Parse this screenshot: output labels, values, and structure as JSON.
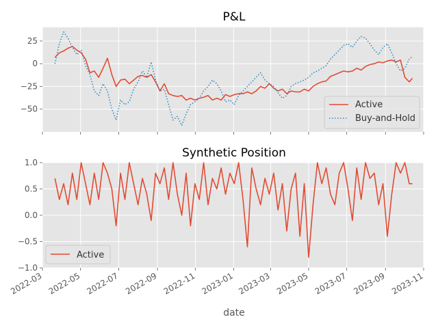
{
  "colors": {
    "active": "#e24a33",
    "buy_and_hold": "#348abd",
    "panel_background": "#e5e5e5",
    "grid": "#ffffff"
  },
  "chart_data": [
    {
      "type": "line",
      "title": "P&L",
      "xlabel": "",
      "ylabel": "",
      "x_range": [
        "2022-03-01",
        "2023-11-01"
      ],
      "ylim": [
        -75,
        40
      ],
      "yticks": [
        25,
        0,
        -25,
        -50
      ],
      "ytick_labels": [
        "25",
        "0",
        "−25",
        "−50"
      ],
      "grid": true,
      "legend_position": "lower-right",
      "series": [
        {
          "name": "Active",
          "style": "solid",
          "color": "#e24a33",
          "x": [
            "2022-03-21",
            "2022-03-28",
            "2022-04-04",
            "2022-04-11",
            "2022-04-18",
            "2022-04-25",
            "2022-05-02",
            "2022-05-09",
            "2022-05-16",
            "2022-05-23",
            "2022-05-30",
            "2022-06-06",
            "2022-06-13",
            "2022-06-20",
            "2022-06-27",
            "2022-07-04",
            "2022-07-11",
            "2022-07-18",
            "2022-07-25",
            "2022-08-01",
            "2022-08-08",
            "2022-08-15",
            "2022-08-22",
            "2022-08-29",
            "2022-09-05",
            "2022-09-12",
            "2022-09-19",
            "2022-09-26",
            "2022-10-03",
            "2022-10-10",
            "2022-10-17",
            "2022-10-24",
            "2022-10-31",
            "2022-11-07",
            "2022-11-14",
            "2022-11-21",
            "2022-11-28",
            "2022-12-05",
            "2022-12-12",
            "2022-12-19",
            "2022-12-26",
            "2023-01-02",
            "2023-01-09",
            "2023-01-16",
            "2023-01-23",
            "2023-01-30",
            "2023-02-06",
            "2023-02-13",
            "2023-02-20",
            "2023-02-27",
            "2023-03-06",
            "2023-03-13",
            "2023-03-20",
            "2023-03-27",
            "2023-04-03",
            "2023-04-10",
            "2023-04-17",
            "2023-04-24",
            "2023-05-01",
            "2023-05-08",
            "2023-05-15",
            "2023-05-22",
            "2023-05-29",
            "2023-06-05",
            "2023-06-12",
            "2023-06-19",
            "2023-06-26",
            "2023-07-03",
            "2023-07-10",
            "2023-07-17",
            "2023-07-24",
            "2023-07-31",
            "2023-08-07",
            "2023-08-14",
            "2023-08-21",
            "2023-08-28",
            "2023-09-04",
            "2023-09-11",
            "2023-09-18",
            "2023-09-25",
            "2023-10-02",
            "2023-10-09",
            "2023-10-14"
          ],
          "y": [
            7,
            12,
            14,
            17,
            19,
            15,
            12,
            5,
            -10,
            -8,
            -15,
            -5,
            6,
            -12,
            -25,
            -18,
            -17,
            -22,
            -18,
            -14,
            -13,
            -15,
            -12,
            -20,
            -30,
            -22,
            -33,
            -35,
            -36,
            -35,
            -40,
            -38,
            -40,
            -38,
            -37,
            -35,
            -40,
            -38,
            -40,
            -34,
            -36,
            -34,
            -33,
            -33,
            -31,
            -33,
            -30,
            -25,
            -27,
            -22,
            -27,
            -30,
            -28,
            -33,
            -30,
            -31,
            -31,
            -28,
            -30,
            -25,
            -22,
            -20,
            -19,
            -14,
            -12,
            -10,
            -8,
            -9,
            -8,
            -5,
            -7,
            -3,
            -1,
            0,
            2,
            1,
            3,
            4,
            2,
            4,
            -15,
            -20,
            -16
          ]
        },
        {
          "name": "Buy-and-Hold",
          "style": "dotted",
          "color": "#348abd",
          "x": [
            "2022-03-21",
            "2022-03-28",
            "2022-04-04",
            "2022-04-11",
            "2022-04-18",
            "2022-04-25",
            "2022-05-02",
            "2022-05-09",
            "2022-05-16",
            "2022-05-23",
            "2022-05-30",
            "2022-06-06",
            "2022-06-13",
            "2022-06-20",
            "2022-06-27",
            "2022-07-04",
            "2022-07-11",
            "2022-07-18",
            "2022-07-25",
            "2022-08-01",
            "2022-08-08",
            "2022-08-15",
            "2022-08-22",
            "2022-08-29",
            "2022-09-05",
            "2022-09-12",
            "2022-09-19",
            "2022-09-26",
            "2022-10-03",
            "2022-10-10",
            "2022-10-17",
            "2022-10-24",
            "2022-10-31",
            "2022-11-07",
            "2022-11-14",
            "2022-11-21",
            "2022-11-28",
            "2022-12-05",
            "2022-12-12",
            "2022-12-19",
            "2022-12-26",
            "2023-01-02",
            "2023-01-09",
            "2023-01-16",
            "2023-01-23",
            "2023-01-30",
            "2023-02-06",
            "2023-02-13",
            "2023-02-20",
            "2023-02-27",
            "2023-03-06",
            "2023-03-13",
            "2023-03-20",
            "2023-03-27",
            "2023-04-03",
            "2023-04-10",
            "2023-04-17",
            "2023-04-24",
            "2023-05-01",
            "2023-05-08",
            "2023-05-15",
            "2023-05-22",
            "2023-05-29",
            "2023-06-05",
            "2023-06-12",
            "2023-06-19",
            "2023-06-26",
            "2023-07-03",
            "2023-07-10",
            "2023-07-17",
            "2023-07-24",
            "2023-07-31",
            "2023-08-07",
            "2023-08-14",
            "2023-08-21",
            "2023-08-28",
            "2023-09-04",
            "2023-09-11",
            "2023-09-18",
            "2023-09-25",
            "2023-10-02",
            "2023-10-09",
            "2023-10-14"
          ],
          "y": [
            0,
            22,
            35,
            28,
            18,
            10,
            15,
            -2,
            -12,
            -30,
            -35,
            -22,
            -30,
            -50,
            -62,
            -40,
            -45,
            -42,
            -28,
            -20,
            -8,
            -15,
            2,
            -18,
            -30,
            -28,
            -45,
            -62,
            -58,
            -68,
            -55,
            -45,
            -42,
            -38,
            -30,
            -25,
            -18,
            -22,
            -30,
            -42,
            -40,
            -45,
            -35,
            -30,
            -25,
            -20,
            -15,
            -10,
            -18,
            -22,
            -25,
            -32,
            -38,
            -35,
            -25,
            -22,
            -20,
            -18,
            -15,
            -10,
            -8,
            -5,
            -2,
            5,
            10,
            15,
            20,
            22,
            18,
            25,
            30,
            28,
            22,
            15,
            10,
            18,
            22,
            12,
            0,
            -8,
            -5,
            5,
            8
          ]
        }
      ]
    },
    {
      "type": "line",
      "title": "Synthetic Position",
      "xlabel": "date",
      "ylabel": "",
      "x_range": [
        "2022-03-01",
        "2023-11-01"
      ],
      "ylim": [
        -1.0,
        1.0
      ],
      "yticks": [
        1.0,
        0.5,
        0.0,
        -0.5,
        -1.0
      ],
      "ytick_labels": [
        "1.0",
        "0.5",
        "0.0",
        "−0.5",
        "−1.0"
      ],
      "xtick_labels": [
        "2022-03",
        "2022-05",
        "2022-07",
        "2022-09",
        "2022-11",
        "2023-01",
        "2023-03",
        "2023-05",
        "2023-07",
        "2023-09",
        "2023-11"
      ],
      "grid": true,
      "legend_position": "lower-left",
      "series": [
        {
          "name": "Active",
          "style": "solid",
          "color": "#e24a33",
          "x": [
            "2022-03-21",
            "2022-03-28",
            "2022-04-04",
            "2022-04-11",
            "2022-04-18",
            "2022-04-25",
            "2022-05-02",
            "2022-05-09",
            "2022-05-16",
            "2022-05-23",
            "2022-05-30",
            "2022-06-06",
            "2022-06-13",
            "2022-06-20",
            "2022-06-27",
            "2022-07-04",
            "2022-07-11",
            "2022-07-18",
            "2022-07-25",
            "2022-08-01",
            "2022-08-08",
            "2022-08-15",
            "2022-08-22",
            "2022-08-29",
            "2022-09-05",
            "2022-09-12",
            "2022-09-19",
            "2022-09-26",
            "2022-10-03",
            "2022-10-10",
            "2022-10-17",
            "2022-10-24",
            "2022-10-31",
            "2022-11-07",
            "2022-11-14",
            "2022-11-21",
            "2022-11-28",
            "2022-12-05",
            "2022-12-12",
            "2022-12-19",
            "2022-12-26",
            "2023-01-02",
            "2023-01-09",
            "2023-01-16",
            "2023-01-23",
            "2023-01-30",
            "2023-02-06",
            "2023-02-13",
            "2023-02-20",
            "2023-02-27",
            "2023-03-06",
            "2023-03-13",
            "2023-03-20",
            "2023-03-27",
            "2023-04-03",
            "2023-04-10",
            "2023-04-17",
            "2023-04-24",
            "2023-05-01",
            "2023-05-08",
            "2023-05-15",
            "2023-05-22",
            "2023-05-29",
            "2023-06-05",
            "2023-06-12",
            "2023-06-19",
            "2023-06-26",
            "2023-07-03",
            "2023-07-10",
            "2023-07-17",
            "2023-07-24",
            "2023-07-31",
            "2023-08-07",
            "2023-08-14",
            "2023-08-21",
            "2023-08-28",
            "2023-09-04",
            "2023-09-11",
            "2023-09-18",
            "2023-09-25",
            "2023-10-02",
            "2023-10-09",
            "2023-10-14"
          ],
          "y": [
            0.7,
            0.3,
            0.6,
            0.2,
            0.8,
            0.3,
            1.0,
            0.6,
            0.2,
            0.8,
            0.3,
            1.0,
            0.8,
            0.5,
            -0.2,
            0.8,
            0.3,
            1.0,
            0.6,
            0.2,
            0.7,
            0.4,
            -0.1,
            0.8,
            0.6,
            0.9,
            0.3,
            1.0,
            0.4,
            0.0,
            0.8,
            -0.2,
            0.6,
            0.3,
            1.0,
            0.2,
            0.7,
            0.5,
            0.9,
            0.4,
            0.8,
            0.6,
            1.0,
            0.3,
            -0.6,
            0.9,
            0.5,
            0.2,
            0.7,
            0.4,
            0.8,
            0.1,
            0.6,
            -0.3,
            0.5,
            0.8,
            -0.4,
            0.6,
            -0.8,
            0.2,
            1.0,
            0.6,
            0.9,
            0.4,
            0.2,
            0.8,
            1.0,
            0.5,
            -0.1,
            0.9,
            0.3,
            1.0,
            0.7,
            0.8,
            0.2,
            0.6,
            -0.4,
            0.4,
            1.0,
            0.8,
            1.0,
            0.6,
            0.6
          ]
        }
      ]
    }
  ]
}
